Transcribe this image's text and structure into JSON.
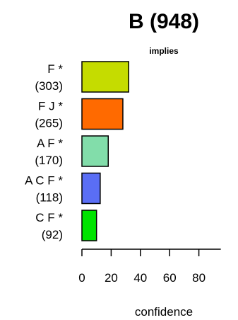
{
  "chart_data": {
    "type": "bar",
    "orientation": "horizontal",
    "title": "B (948)",
    "subtitle": "implies",
    "xlabel": "confidence",
    "ylabel": "",
    "categories": [
      {
        "name": "F *",
        "count": "(303)",
        "value": 32,
        "color": "#c5dc00"
      },
      {
        "name": "F J *",
        "count": "(265)",
        "value": 28,
        "color": "#ff6a00"
      },
      {
        "name": "A F *",
        "count": "(170)",
        "value": 18,
        "color": "#82ddaa"
      },
      {
        "name": "A C F *",
        "count": "(118)",
        "value": 12.5,
        "color": "#5a6ef5"
      },
      {
        "name": "C F *",
        "count": "(92)",
        "value": 10,
        "color": "#00e400"
      }
    ],
    "xlim": [
      0,
      95
    ],
    "xticks": [
      0,
      20,
      40,
      60,
      80
    ],
    "grid": false,
    "legend": "none"
  }
}
